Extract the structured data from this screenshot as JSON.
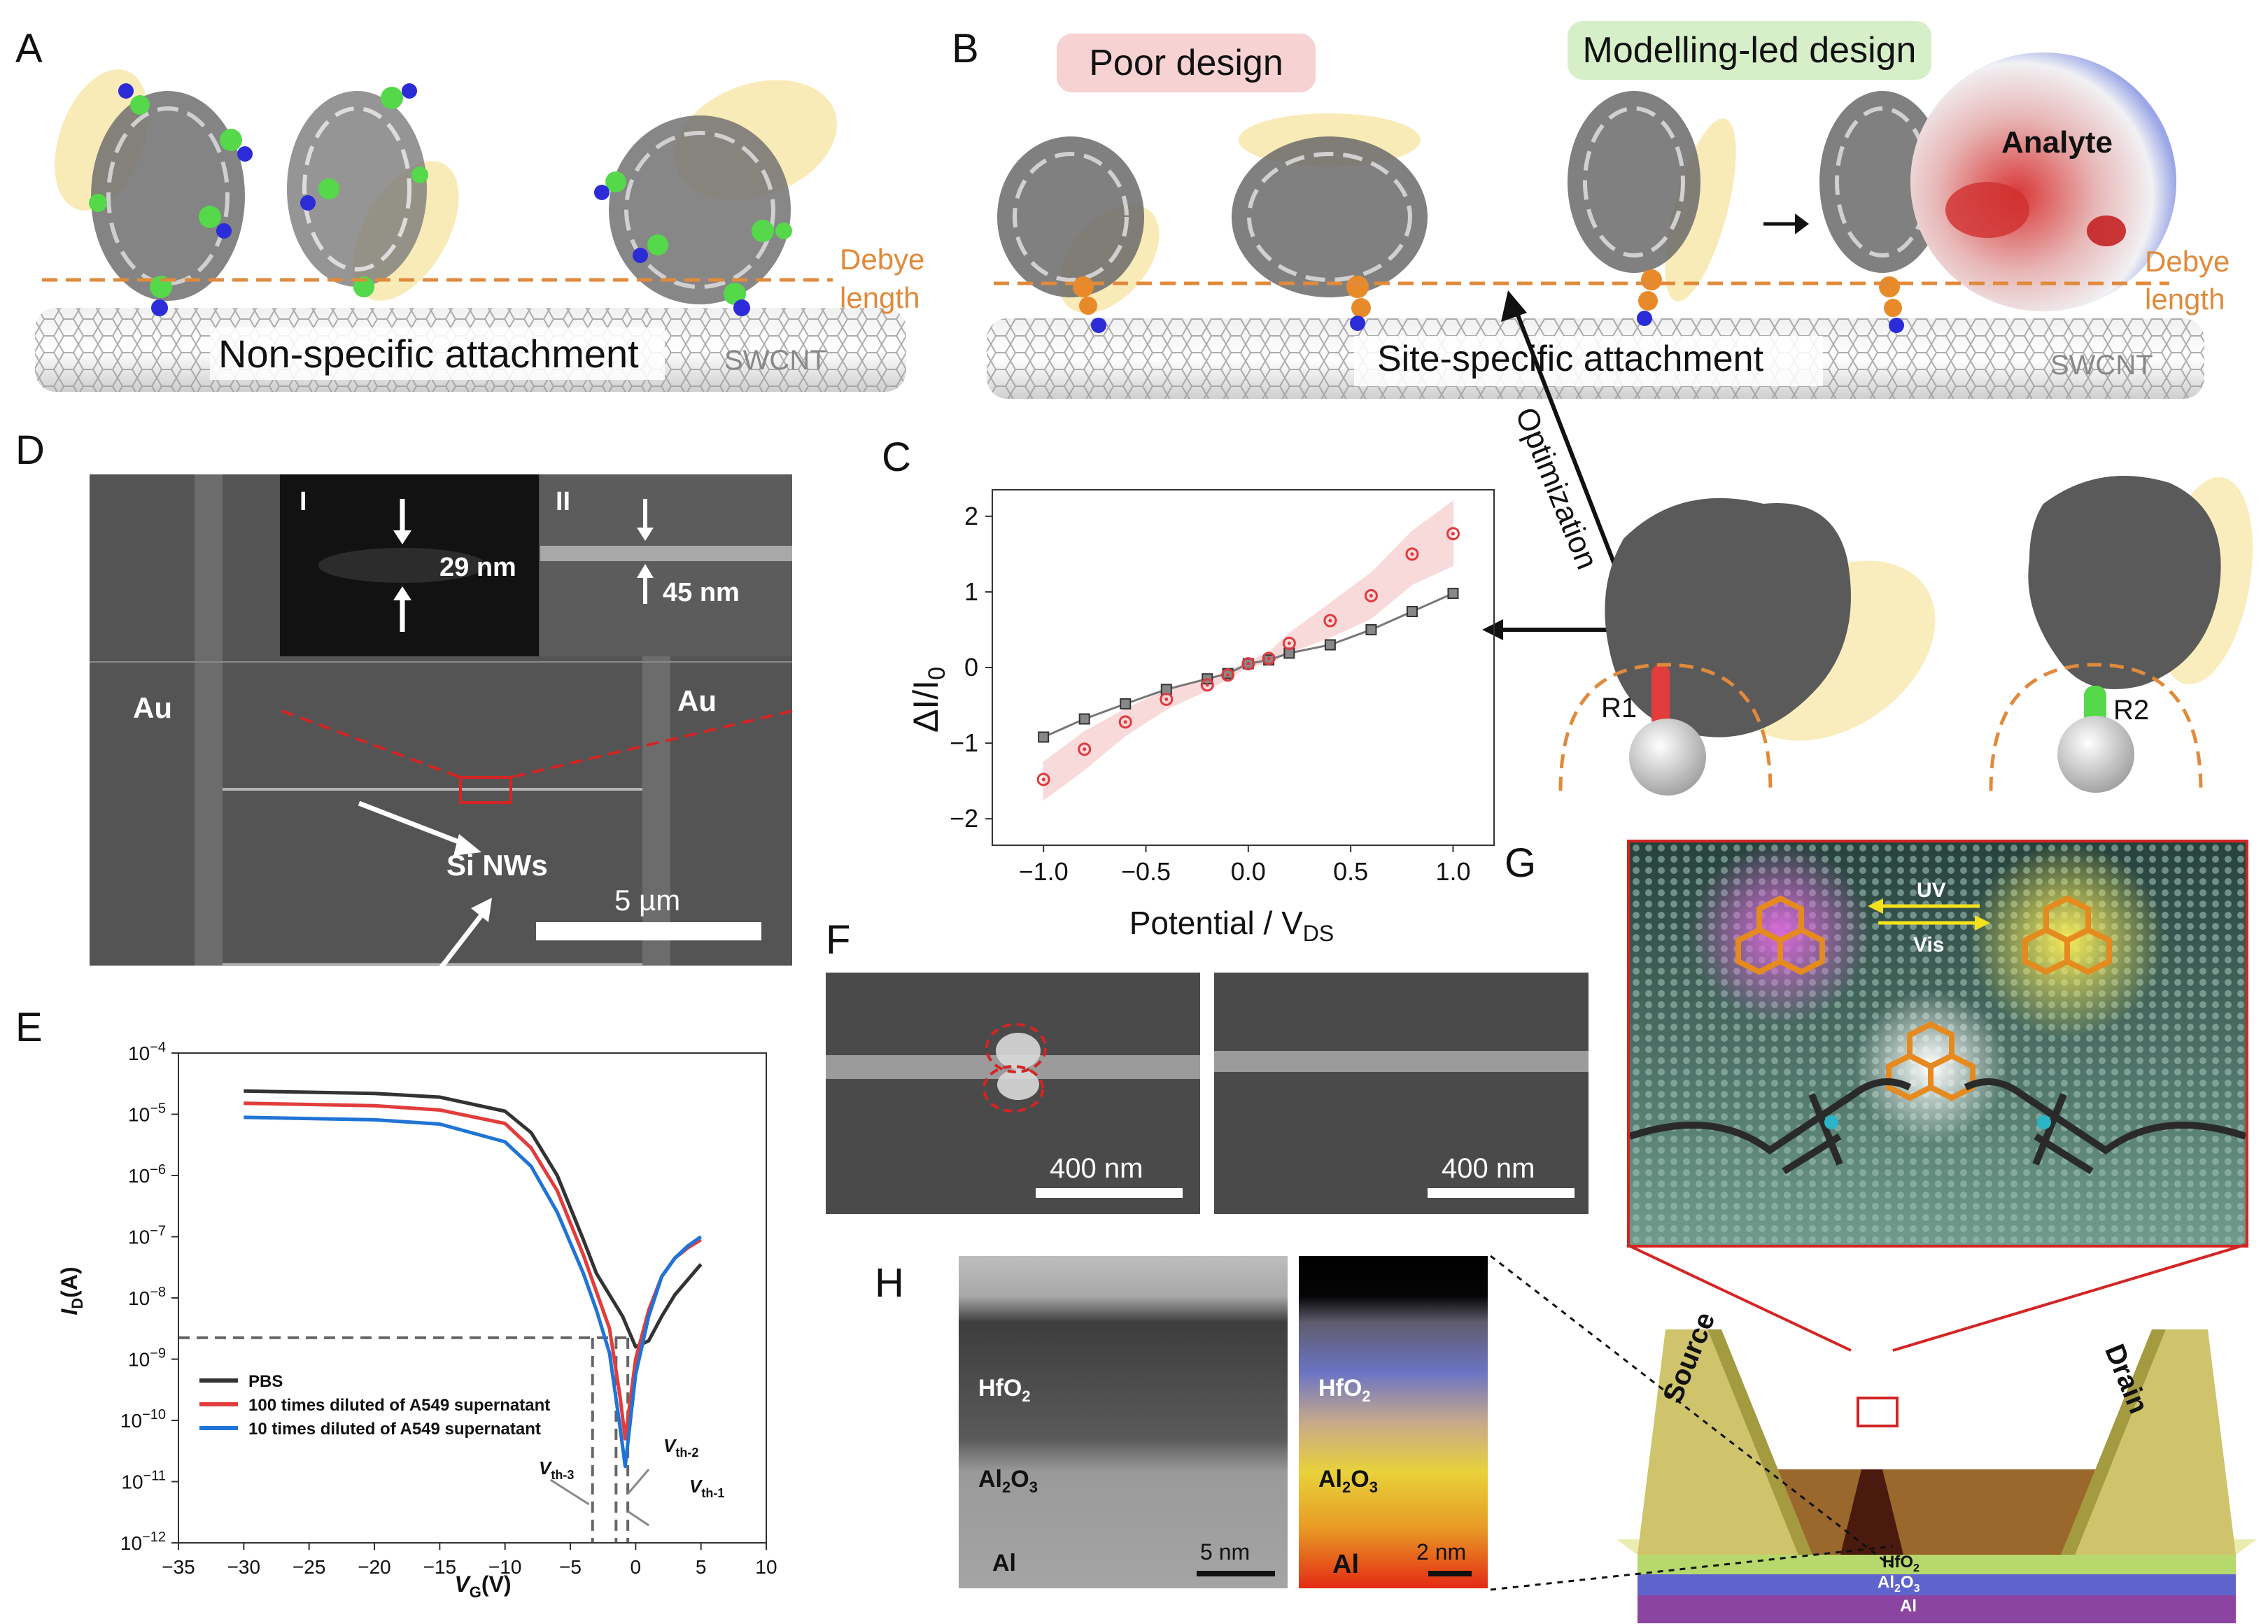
{
  "panels": {
    "A": {
      "label": "A",
      "attachment_label": "Non-specific attachment",
      "tube_label": "SWCNT",
      "debye_label_line1": "Debye",
      "debye_label_line2": "length"
    },
    "B": {
      "label": "B",
      "poor_design": "Poor design",
      "modelling_design": "Modelling-led design",
      "analyte_label": "Analyte",
      "attachment_label": "Site-specific attachment",
      "tube_label": "SWCNT",
      "debye_label_line1": "Debye",
      "debye_label_line2": "length",
      "optimization_label": "Optimization",
      "residue_r1": "R1",
      "residue_r2": "R2"
    },
    "C": {
      "label": "C",
      "ylabel_main": "ΔI/I",
      "ylabel_sub": "0",
      "xlabel_main": "Potential / V",
      "xlabel_sub": "DS"
    },
    "D": {
      "label": "D",
      "inset1_label": "I",
      "inset1_width": "29 nm",
      "inset2_label": "II",
      "inset2_width": "45 nm",
      "electrode_left": "Au",
      "electrode_right": "Au",
      "nw_label": "Si NWs",
      "scale_bar": "5 µm"
    },
    "E": {
      "label": "E",
      "ylabel_main": "I",
      "ylabel_sub": "D",
      "ylabel_unit": "(A)",
      "xlabel_main": "V",
      "xlabel_sub": "G",
      "xlabel_unit": "(V)",
      "vth1_main": "V",
      "vth1_sub": "th-1",
      "vth2_main": "V",
      "vth2_sub": "th-2",
      "vth3_main": "V",
      "vth3_sub": "th-3"
    },
    "F": {
      "label": "F",
      "scale_left": "400 nm",
      "scale_right": "400 nm"
    },
    "G": {
      "label": "G",
      "uv_label": "UV",
      "vis_label": "Vis",
      "source_label": "Source",
      "drain_label": "Drain",
      "layer_hfo2_main": "HfO",
      "layer_hfo2_sub": "2",
      "layer_al2o3_a": "Al",
      "layer_al2o3_b": "2",
      "layer_al2o3_c": "O",
      "layer_al2o3_d": "3",
      "layer_al": "Al"
    },
    "H": {
      "label": "H",
      "hfo2_main": "HfO",
      "hfo2_sub": "2",
      "al2o3_a": "Al",
      "al2o3_b": "2",
      "al2o3_c": "O",
      "al2o3_d": "3",
      "al": "Al",
      "scale_left": "5 nm",
      "scale_right": "2 nm"
    }
  },
  "colors": {
    "debye_line": "#e08a3c",
    "poor_bg": "#f6d2d3",
    "modelling_bg": "#d6efc9",
    "red_series": "#e0393e",
    "black_series": "#555555",
    "blue_series": "#1f74d6",
    "dark_series": "#333333",
    "redline_series": "#e23c3c"
  },
  "chart_data": [
    {
      "type": "scatter",
      "panel": "C",
      "xlim": [
        -1.25,
        1.2
      ],
      "ylim": [
        -2.35,
        2.35
      ],
      "xticks": [
        -1.0,
        -0.5,
        0.0,
        0.5,
        1.0
      ],
      "xtick_labels": [
        "−1.0",
        "−0.5",
        "0.0",
        "0.5",
        "1.0"
      ],
      "yticks": [
        -2,
        -1,
        0,
        1,
        2
      ],
      "ytick_labels": [
        "−2",
        "−1",
        "0",
        "1",
        "2"
      ],
      "grid": false,
      "series": [
        {
          "marker": "square",
          "color": "#555555",
          "x": [
            -1.0,
            -0.8,
            -0.6,
            -0.4,
            -0.2,
            -0.1,
            0.0,
            0.1,
            0.2,
            0.4,
            0.6,
            0.8,
            1.0
          ],
          "y": [
            -0.92,
            -0.68,
            -0.48,
            -0.29,
            -0.15,
            -0.08,
            0.05,
            0.1,
            0.19,
            0.3,
            0.5,
            0.74,
            0.98
          ]
        },
        {
          "marker": "circle",
          "color": "#e0393e",
          "x": [
            -1.0,
            -0.8,
            -0.6,
            -0.4,
            -0.2,
            -0.1,
            0.0,
            0.1,
            0.2,
            0.4,
            0.6,
            0.8,
            1.0
          ],
          "y": [
            -1.48,
            -1.08,
            -0.72,
            -0.42,
            -0.23,
            -0.1,
            0.05,
            0.12,
            0.32,
            0.62,
            0.95,
            1.5,
            1.77
          ],
          "band_upper": [
            -1.25,
            -0.85,
            -0.55,
            -0.3,
            -0.15,
            -0.05,
            0.08,
            0.2,
            0.45,
            0.85,
            1.25,
            1.8,
            2.2
          ],
          "band_lower": [
            -1.75,
            -1.35,
            -0.9,
            -0.55,
            -0.3,
            -0.15,
            0.02,
            0.05,
            0.2,
            0.4,
            0.65,
            1.1,
            1.35
          ]
        }
      ]
    },
    {
      "type": "line",
      "panel": "E",
      "xlim": [
        -35,
        10
      ],
      "ylim_log10": [
        -12,
        -4
      ],
      "y_scale": "log",
      "xticks": [
        -35,
        -30,
        -25,
        -20,
        -15,
        -10,
        -5,
        0,
        5,
        10
      ],
      "xtick_labels": [
        "−35",
        "−30",
        "−25",
        "−20",
        "−15",
        "−10",
        "−5",
        "0",
        "5",
        "10"
      ],
      "ytick_exponents": [
        -12,
        -11,
        -10,
        -9,
        -8,
        -7,
        -6,
        -5,
        -4
      ],
      "legend_placement": "lower-left",
      "reference_level_log10": -8.65,
      "vth_values": [
        -3.3,
        -1.5,
        -0.6
      ],
      "series": [
        {
          "name": "PBS",
          "color": "#333333",
          "x": [
            -30,
            -20,
            -15,
            -10,
            -8,
            -6,
            -4,
            -3,
            -2,
            -1,
            0,
            1,
            2,
            3,
            4,
            5
          ],
          "y_log10": [
            -4.62,
            -4.66,
            -4.72,
            -4.95,
            -5.3,
            -6.0,
            -7.05,
            -7.6,
            -7.95,
            -8.3,
            -8.8,
            -8.7,
            -8.3,
            -7.95,
            -7.7,
            -7.45
          ]
        },
        {
          "name": "100 times diluted of A549 supernatant",
          "color": "#e23c3c",
          "x": [
            -30,
            -20,
            -15,
            -10,
            -8,
            -6,
            -4,
            -3,
            -2,
            -1.2,
            -0.8,
            0,
            1,
            2,
            3,
            4,
            5
          ],
          "y_log10": [
            -4.82,
            -4.86,
            -4.93,
            -5.15,
            -5.55,
            -6.25,
            -7.3,
            -7.9,
            -8.5,
            -9.6,
            -10.3,
            -9.0,
            -8.2,
            -7.65,
            -7.35,
            -7.18,
            -7.05
          ]
        },
        {
          "name": "10 times diluted of A549 supernatant",
          "color": "#1f74d6",
          "x": [
            -30,
            -20,
            -15,
            -10,
            -8,
            -6,
            -4,
            -3,
            -2,
            -1.2,
            -0.8,
            0,
            1,
            2,
            3,
            4,
            5
          ],
          "y_log10": [
            -5.05,
            -5.09,
            -5.16,
            -5.45,
            -5.85,
            -6.6,
            -7.6,
            -8.2,
            -8.9,
            -10.1,
            -10.75,
            -9.25,
            -8.3,
            -7.65,
            -7.35,
            -7.15,
            -7.0
          ]
        }
      ]
    }
  ]
}
